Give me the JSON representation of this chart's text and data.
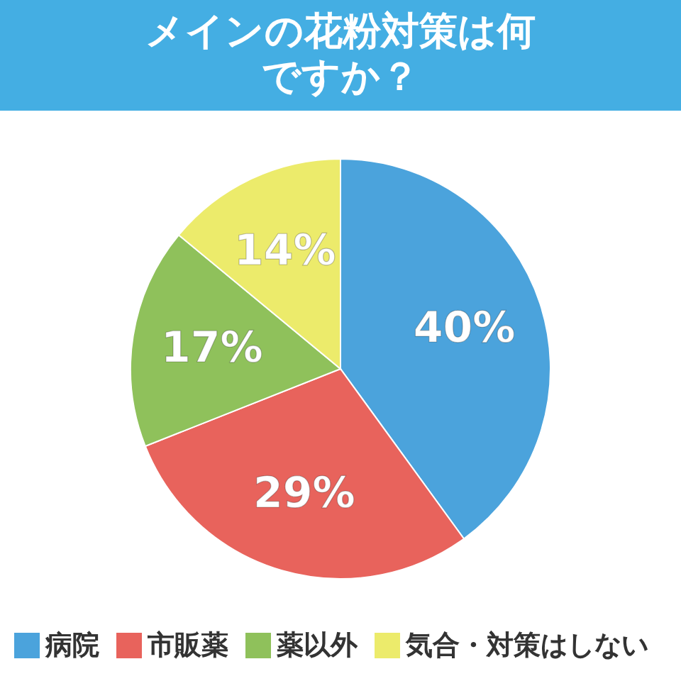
{
  "chart_data": {
    "type": "pie",
    "title": "メインの花粉対策は何ですか？",
    "categories": [
      "病院",
      "市販薬",
      "薬以外",
      "気合・対策はしない"
    ],
    "values": [
      40,
      29,
      17,
      14
    ],
    "colors": [
      "#4ba3dc",
      "#e8635c",
      "#8fc15b",
      "#eceb6b"
    ],
    "value_labels": [
      "40%",
      "29%",
      "17%",
      "14%"
    ],
    "legend": "bottom"
  }
}
